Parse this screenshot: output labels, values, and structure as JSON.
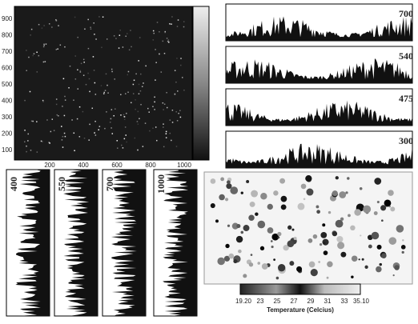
{
  "main_image": {
    "y_ticks": [
      "900",
      "800",
      "700",
      "600",
      "500",
      "400",
      "300",
      "200",
      "100"
    ],
    "x_ticks": [
      "200",
      "400",
      "600",
      "800",
      "1000"
    ]
  },
  "profiles": {
    "labels": [
      "700",
      "540",
      "475",
      "300"
    ]
  },
  "vertical_profiles": {
    "labels": [
      "400",
      "550",
      "700",
      "1000"
    ]
  },
  "temperature_map": {
    "colorbar_ticks": [
      "19.20",
      "23",
      "25",
      "27",
      "29",
      "31",
      "33",
      "35.10"
    ],
    "colorbar_title": "Temperature (Celcius)"
  }
}
